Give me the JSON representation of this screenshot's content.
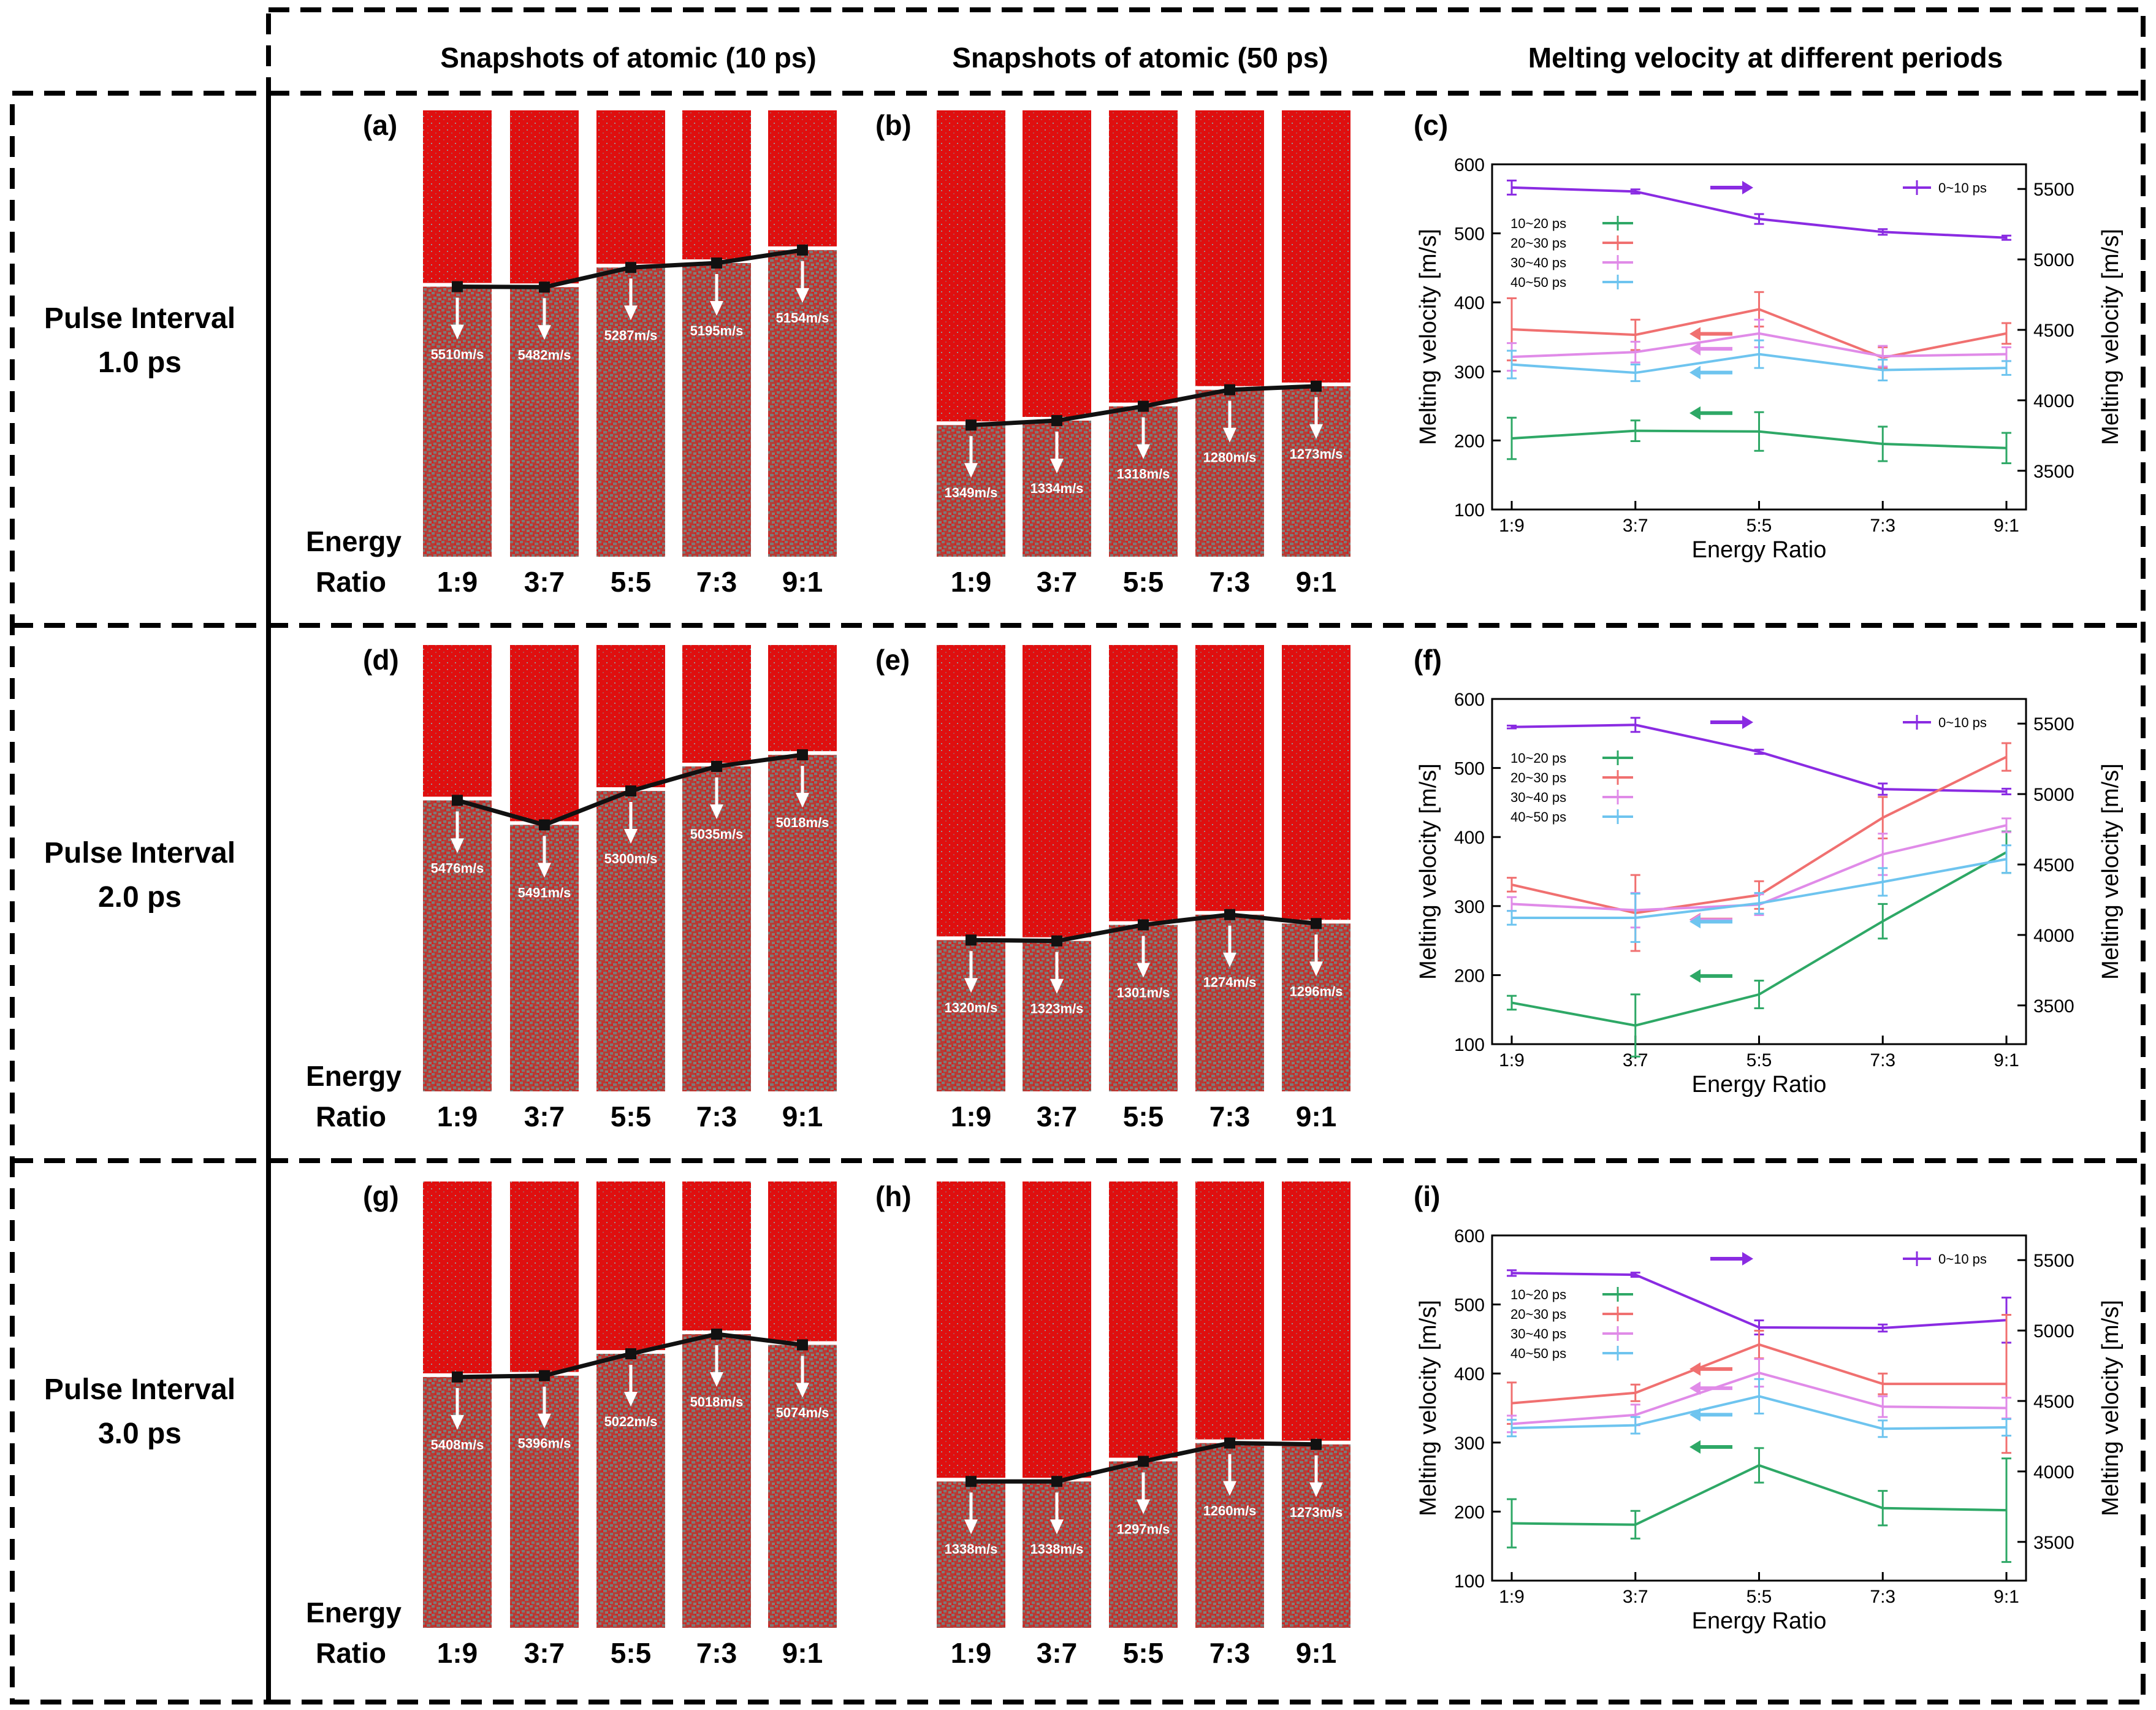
{
  "headers": {
    "col1": "Snapshots of atomic (10 ps)",
    "col2": "Snapshots of atomic (50 ps)",
    "col3": "Melting velocity at different periods"
  },
  "colors": {
    "solid": "#df0f0f",
    "liquid": "#7d7a78",
    "line": "#111111",
    "purple": "#8a2be2",
    "red": "#f07070",
    "pink": "#e08be8",
    "blue": "#6ec4ef",
    "green": "#2ea866"
  },
  "energy_row_label": [
    "Energy",
    "Ratio"
  ],
  "rows": [
    {
      "label": [
        "Pulse Interval",
        "1.0 ps"
      ],
      "p10": {
        "tag": "(a)",
        "front": [
          0.395,
          0.396,
          0.352,
          0.342,
          0.313
        ],
        "velocities": [
          "5510m/s",
          "5482m/s",
          "5287m/s",
          "5195m/s",
          "5154m/s"
        ]
      },
      "p50": {
        "tag": "(b)",
        "front": [
          0.705,
          0.695,
          0.663,
          0.626,
          0.618
        ],
        "velocities": [
          "1349m/s",
          "1334m/s",
          "1318m/s",
          "1280m/s",
          "1273m/s"
        ]
      },
      "chart": {
        "tag": "(c)"
      }
    },
    {
      "label": [
        "Pulse Interval",
        "2.0 ps"
      ],
      "p10": {
        "tag": "(d)",
        "front": [
          0.348,
          0.403,
          0.327,
          0.272,
          0.246
        ],
        "velocities": [
          "5476m/s",
          "5491m/s",
          "5300m/s",
          "5035m/s",
          "5018m/s"
        ]
      },
      "p50": {
        "tag": "(e)",
        "front": [
          0.661,
          0.663,
          0.627,
          0.604,
          0.624
        ],
        "velocities": [
          "1320m/s",
          "1323m/s",
          "1301m/s",
          "1274m/s",
          "1296m/s"
        ]
      },
      "chart": {
        "tag": "(f)"
      }
    },
    {
      "label": [
        "Pulse Interval",
        "3.0 ps"
      ],
      "p10": {
        "tag": "(g)",
        "front": [
          0.438,
          0.435,
          0.386,
          0.342,
          0.366
        ],
        "velocities": [
          "5408m/s",
          "5396m/s",
          "5022m/s",
          "5018m/s",
          "5074m/s"
        ]
      },
      "p50": {
        "tag": "(h)",
        "front": [
          0.672,
          0.672,
          0.627,
          0.586,
          0.589
        ],
        "velocities": [
          "1338m/s",
          "1338m/s",
          "1297m/s",
          "1260m/s",
          "1273m/s"
        ]
      },
      "chart": {
        "tag": "(i)"
      }
    }
  ],
  "chart_data": [
    {
      "type": "line",
      "title": "(c)",
      "categories": [
        "1:9",
        "3:7",
        "5:5",
        "7:3",
        "9:1"
      ],
      "xlabel": "Energy Ratio",
      "ylabel": "Melting velocity [m/s]",
      "y2label": "Melting velocity [m/s]",
      "ylim": [
        100,
        600
      ],
      "yticks": [
        100,
        200,
        300,
        400,
        500,
        600
      ],
      "y2lim": [
        3225,
        5675
      ],
      "y2ticks": [
        3500,
        4000,
        4500,
        5000,
        5500
      ],
      "series": [
        {
          "name": "0~10 ps",
          "axis": "right",
          "color": "#8a2be2",
          "values": [
            5510,
            5482,
            5287,
            5195,
            5154
          ],
          "errors": [
            50,
            15,
            35,
            20,
            15
          ]
        },
        {
          "name": "10~20 ps",
          "axis": "left",
          "color": "#2ea866",
          "values": [
            203,
            214,
            213,
            195,
            189
          ],
          "errors": [
            30,
            15,
            28,
            25,
            22
          ]
        },
        {
          "name": "20~30 ps",
          "axis": "left",
          "color": "#f07070",
          "values": [
            361,
            353,
            390,
            320,
            355
          ],
          "errors": [
            45,
            22,
            25,
            15,
            15
          ]
        },
        {
          "name": "30~40 ps",
          "axis": "left",
          "color": "#e08be8",
          "values": [
            321,
            328,
            355,
            322,
            325
          ],
          "errors": [
            20,
            15,
            20,
            15,
            10
          ]
        },
        {
          "name": "40~50 ps",
          "axis": "left",
          "color": "#6ec4ef",
          "values": [
            310,
            298,
            325,
            302,
            305
          ],
          "errors": [
            20,
            12,
            20,
            15,
            10
          ]
        }
      ]
    },
    {
      "type": "line",
      "title": "(f)",
      "categories": [
        "1:9",
        "3:7",
        "5:5",
        "7:3",
        "9:1"
      ],
      "xlabel": "Energy Ratio",
      "ylabel": "Melting velocity [m/s]",
      "y2label": "Melting velocity [m/s]",
      "ylim": [
        100,
        600
      ],
      "yticks": [
        100,
        200,
        300,
        400,
        500,
        600
      ],
      "y2lim": [
        3225,
        5675
      ],
      "y2ticks": [
        3500,
        4000,
        4500,
        5000,
        5500
      ],
      "series": [
        {
          "name": "0~10 ps",
          "axis": "right",
          "color": "#8a2be2",
          "values": [
            5476,
            5491,
            5300,
            5035,
            5018
          ],
          "errors": [
            10,
            50,
            15,
            40,
            20
          ]
        },
        {
          "name": "10~20 ps",
          "axis": "left",
          "color": "#2ea866",
          "values": [
            160,
            127,
            172,
            278,
            378
          ],
          "errors": [
            10,
            45,
            20,
            25,
            30
          ]
        },
        {
          "name": "20~30 ps",
          "axis": "left",
          "color": "#f07070",
          "values": [
            331,
            290,
            316,
            428,
            516
          ],
          "errors": [
            10,
            55,
            20,
            30,
            20
          ]
        },
        {
          "name": "30~40 ps",
          "axis": "left",
          "color": "#e08be8",
          "values": [
            303,
            294,
            302,
            375,
            417
          ],
          "errors": [
            10,
            25,
            15,
            30,
            10
          ]
        },
        {
          "name": "40~50 ps",
          "axis": "left",
          "color": "#6ec4ef",
          "values": [
            283,
            283,
            304,
            335,
            368
          ],
          "errors": [
            10,
            35,
            15,
            20,
            20
          ]
        }
      ]
    },
    {
      "type": "line",
      "title": "(i)",
      "categories": [
        "1:9",
        "3:7",
        "5:5",
        "7:3",
        "9:1"
      ],
      "xlabel": "Energy Ratio",
      "ylabel": "Melting velocity [m/s]",
      "y2label": "Melting velocity [m/s]",
      "ylim": [
        100,
        600
      ],
      "yticks": [
        100,
        200,
        300,
        400,
        500,
        600
      ],
      "y2lim": [
        3225,
        5675
      ],
      "y2ticks": [
        3500,
        4000,
        4500,
        5000,
        5500
      ],
      "series": [
        {
          "name": "0~10 ps",
          "axis": "right",
          "color": "#8a2be2",
          "values": [
            5408,
            5396,
            5022,
            5018,
            5074
          ],
          "errors": [
            20,
            15,
            50,
            25,
            160
          ]
        },
        {
          "name": "10~20 ps",
          "axis": "left",
          "color": "#2ea866",
          "values": [
            183,
            181,
            267,
            205,
            202
          ],
          "errors": [
            35,
            20,
            25,
            25,
            75
          ]
        },
        {
          "name": "20~30 ps",
          "axis": "left",
          "color": "#f07070",
          "values": [
            357,
            372,
            442,
            385,
            385
          ],
          "errors": [
            30,
            12,
            20,
            15,
            100
          ]
        },
        {
          "name": "30~40 ps",
          "axis": "left",
          "color": "#e08be8",
          "values": [
            327,
            340,
            401,
            352,
            350
          ],
          "errors": [
            12,
            15,
            20,
            15,
            15
          ]
        },
        {
          "name": "40~50 ps",
          "axis": "left",
          "color": "#6ec4ef",
          "values": [
            321,
            325,
            367,
            320,
            322
          ],
          "errors": [
            12,
            12,
            25,
            12,
            12
          ]
        }
      ]
    }
  ]
}
